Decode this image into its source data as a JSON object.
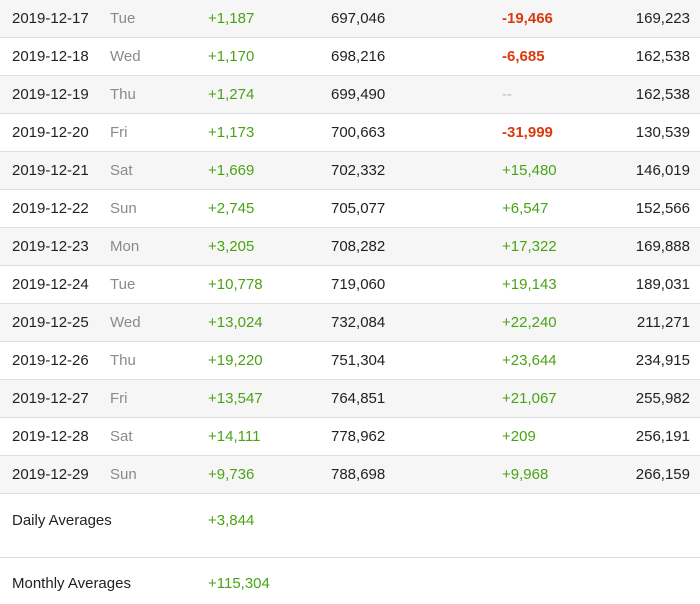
{
  "rows": [
    {
      "date": "2019-12-17",
      "day": "Tue",
      "gain": "+1,187",
      "total": "697,046",
      "change": "-19,466",
      "change_type": "neg",
      "value": "169,223"
    },
    {
      "date": "2019-12-18",
      "day": "Wed",
      "gain": "+1,170",
      "total": "698,216",
      "change": "-6,685",
      "change_type": "neg",
      "value": "162,538"
    },
    {
      "date": "2019-12-19",
      "day": "Thu",
      "gain": "+1,274",
      "total": "699,490",
      "change": "--",
      "change_type": "none",
      "value": "162,538"
    },
    {
      "date": "2019-12-20",
      "day": "Fri",
      "gain": "+1,173",
      "total": "700,663",
      "change": "-31,999",
      "change_type": "neg",
      "value": "130,539"
    },
    {
      "date": "2019-12-21",
      "day": "Sat",
      "gain": "+1,669",
      "total": "702,332",
      "change": "+15,480",
      "change_type": "pos",
      "value": "146,019"
    },
    {
      "date": "2019-12-22",
      "day": "Sun",
      "gain": "+2,745",
      "total": "705,077",
      "change": "+6,547",
      "change_type": "pos",
      "value": "152,566"
    },
    {
      "date": "2019-12-23",
      "day": "Mon",
      "gain": "+3,205",
      "total": "708,282",
      "change": "+17,322",
      "change_type": "pos",
      "value": "169,888"
    },
    {
      "date": "2019-12-24",
      "day": "Tue",
      "gain": "+10,778",
      "total": "719,060",
      "change": "+19,143",
      "change_type": "pos",
      "value": "189,031"
    },
    {
      "date": "2019-12-25",
      "day": "Wed",
      "gain": "+13,024",
      "total": "732,084",
      "change": "+22,240",
      "change_type": "pos",
      "value": "211,271"
    },
    {
      "date": "2019-12-26",
      "day": "Thu",
      "gain": "+19,220",
      "total": "751,304",
      "change": "+23,644",
      "change_type": "pos",
      "value": "234,915"
    },
    {
      "date": "2019-12-27",
      "day": "Fri",
      "gain": "+13,547",
      "total": "764,851",
      "change": "+21,067",
      "change_type": "pos",
      "value": "255,982"
    },
    {
      "date": "2019-12-28",
      "day": "Sat",
      "gain": "+14,111",
      "total": "778,962",
      "change": "+209",
      "change_type": "pos",
      "value": "256,191"
    },
    {
      "date": "2019-12-29",
      "day": "Sun",
      "gain": "+9,736",
      "total": "788,698",
      "change": "+9,968",
      "change_type": "pos",
      "value": "266,159"
    }
  ],
  "averages": {
    "daily_label": "Daily Averages",
    "daily_value": "+3,844",
    "monthly_label": "Monthly Averages",
    "monthly_value": "+115,304"
  },
  "colors": {
    "positive": "#4aa314",
    "negative": "#d93a10",
    "muted": "#8a8a8a",
    "stripe": "#f6f6f6",
    "divider": "#dedede"
  }
}
